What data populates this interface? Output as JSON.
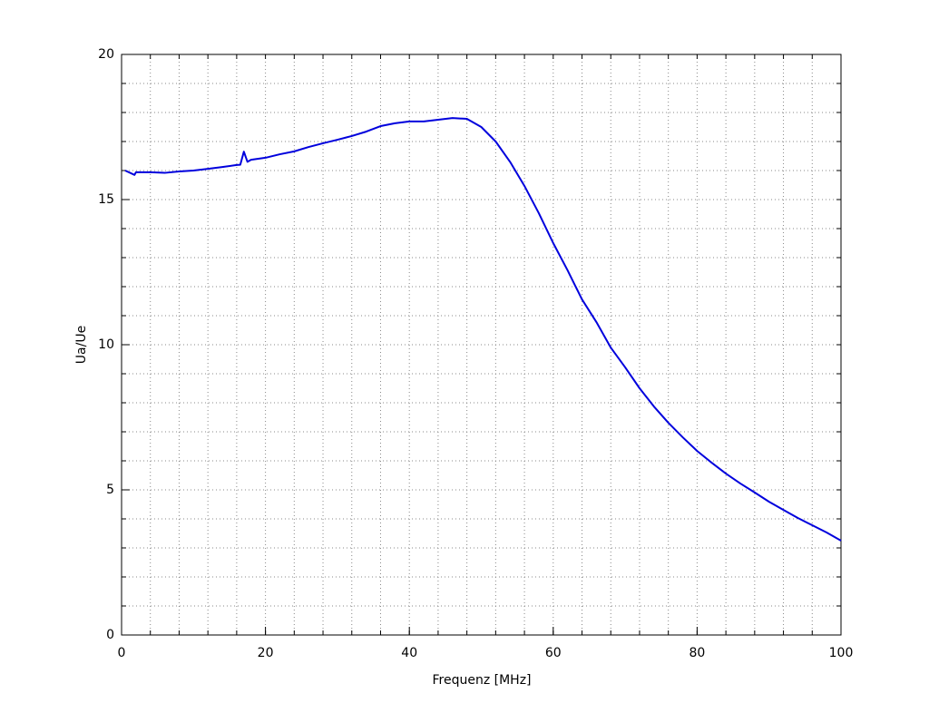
{
  "chart_data": {
    "type": "line",
    "x_label": "Frequenz [MHz]",
    "y_label": "Ua/Ue",
    "xlim": [
      0,
      100
    ],
    "ylim": [
      0,
      20
    ],
    "xticks": [
      0,
      20,
      40,
      60,
      80,
      100
    ],
    "yticks": [
      0,
      5,
      10,
      15,
      20
    ],
    "xgrid": [
      4,
      8,
      12,
      16,
      20,
      24,
      28,
      32,
      36,
      40,
      44,
      48,
      52,
      56,
      60,
      64,
      68,
      72,
      76,
      80,
      84,
      88,
      92,
      96
    ],
    "ygrid": [
      1,
      2,
      3,
      4,
      5,
      6,
      7,
      8,
      9,
      10,
      11,
      12,
      13,
      14,
      15,
      16,
      17,
      18,
      19
    ],
    "grid": true,
    "series": [
      {
        "color": "#0000dd",
        "x": [
          0.5,
          1.8,
          2,
          4,
          6,
          8,
          10,
          12,
          14,
          16,
          16.5,
          17,
          17.5,
          18,
          20,
          22,
          24,
          26,
          28,
          30,
          32,
          34,
          36,
          38,
          40,
          42,
          44,
          46,
          48,
          50,
          52,
          54,
          56,
          58,
          60,
          62,
          64,
          66,
          68,
          70,
          72,
          74,
          76,
          78,
          80,
          82,
          84,
          86,
          88,
          90,
          92,
          94,
          96,
          98,
          100
        ],
        "values": [
          16.0,
          15.85,
          15.94,
          15.94,
          15.92,
          15.97,
          16.0,
          16.06,
          16.12,
          16.19,
          16.2,
          16.65,
          16.3,
          16.37,
          16.44,
          16.56,
          16.66,
          16.81,
          16.94,
          17.06,
          17.19,
          17.34,
          17.53,
          17.63,
          17.69,
          17.69,
          17.75,
          17.81,
          17.78,
          17.5,
          17.0,
          16.3,
          15.47,
          14.53,
          13.5,
          12.56,
          11.56,
          10.78,
          9.9,
          9.22,
          8.5,
          7.87,
          7.31,
          6.81,
          6.34,
          5.94,
          5.56,
          5.22,
          4.91,
          4.59,
          4.31,
          4.03,
          3.78,
          3.53,
          3.25
        ]
      }
    ]
  }
}
